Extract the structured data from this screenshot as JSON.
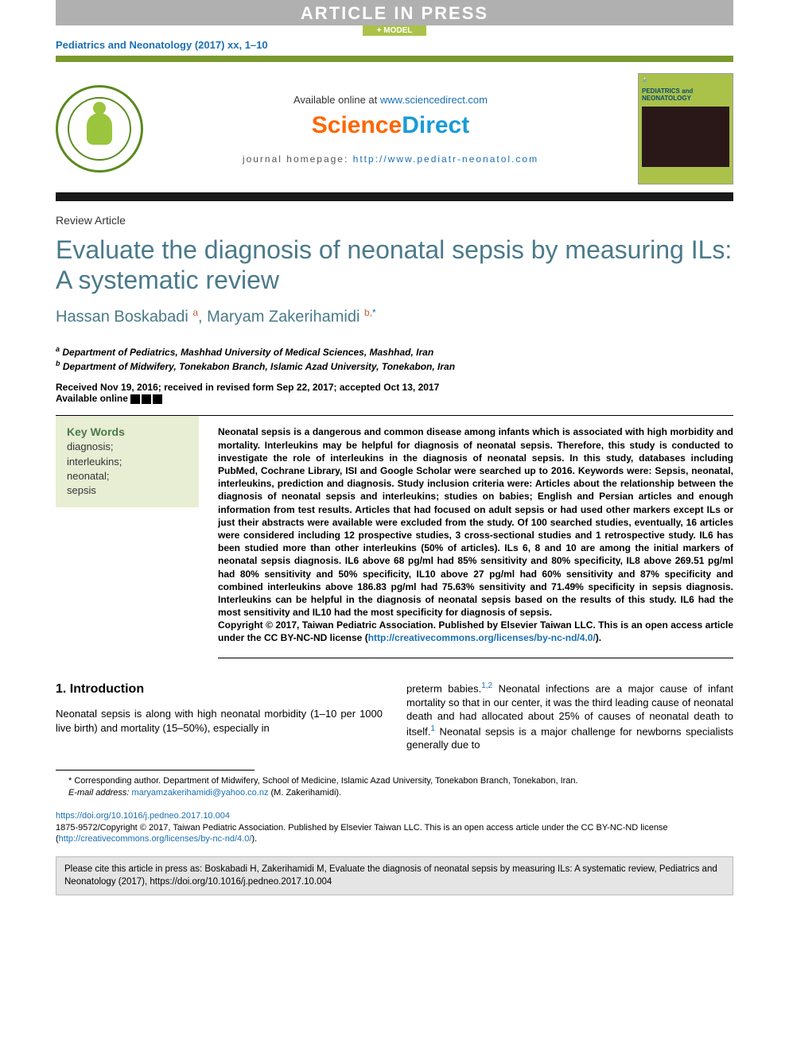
{
  "banner": {
    "article_in_press": "ARTICLE IN PRESS",
    "model": "+ MODEL"
  },
  "citation_top": "Pediatrics and Neonatology (2017) xx, 1–10",
  "header": {
    "available_text": "Available online at ",
    "available_link": "www.sciencedirect.com",
    "sd_part1": "Science",
    "sd_part2": "Direct",
    "homepage_label": "journal homepage: ",
    "homepage_link": "http://www.pediatr-neonatol.com",
    "cover_title": "PEDIATRICS and NEONATOLOGY"
  },
  "article_type": "Review Article",
  "title": "Evaluate the diagnosis of neonatal sepsis by measuring ILs: A systematic review",
  "authors_html": {
    "a1_name": "Hassan Boskabadi ",
    "a1_sup": "a",
    "sep": ", ",
    "a2_name": "Maryam Zakerihamidi ",
    "a2_sup": "b,",
    "corr": "*"
  },
  "affiliations": {
    "a": "Department of Pediatrics, Mashhad University of Medical Sciences, Mashhad, Iran",
    "b": "Department of Midwifery, Tonekabon Branch, Islamic Azad University, Tonekabon, Iran"
  },
  "dates": {
    "received": "Received Nov 19, 2016; received in revised form Sep 22, 2017; accepted Oct 13, 2017",
    "available": "Available online "
  },
  "keywords": {
    "heading": "Key Words",
    "items": [
      "diagnosis;",
      "interleukins;",
      "neonatal;",
      "sepsis"
    ]
  },
  "abstract": {
    "p1": "Neonatal sepsis is a dangerous and common disease among infants which is associated with high morbidity and mortality. Interleukins may be helpful for diagnosis of neonatal sepsis. Therefore, this study is conducted to investigate the role of interleukins in the diagnosis of neonatal sepsis. In this study, databases including PubMed, Cochrane Library, ISI and Google Scholar were searched up to 2016. Keywords were: Sepsis, neonatal, interleukins, prediction and diagnosis. Study inclusion criteria were: Articles about the relationship between the diagnosis of neonatal sepsis and interleukins; studies on babies; English and Persian articles and enough information from test results. Articles that had focused on adult sepsis or had used other markers except ILs or just their abstracts were available were excluded from the study. Of 100 searched studies, eventually, 16 articles were considered including 12 prospective studies, 3 cross-sectional studies and 1 retrospective study. IL6 has been studied more than other interleukins (50% of articles). ILs 6, 8 and 10 are among the initial markers of neonatal sepsis diagnosis. IL6 above 68 pg/ml had 85% sensitivity and 80% specificity, IL8 above 269.51 pg/ml had 80% sensitivity and 50% specificity, IL10 above 27 pg/ml had 60% sensitivity and 87% specificity and combined interleukins above 186.83 pg/ml had 75.63% sensitivity and 71.49% specificity in sepsis diagnosis. Interleukins can be helpful in the diagnosis of neonatal sepsis based on the results of this study. IL6 had the most sensitivity and IL10 had the most specificity for diagnosis of sepsis.",
    "copyright_pre": "Copyright © 2017, Taiwan Pediatric Association. Published by Elsevier Taiwan LLC. This is an open access article under the CC BY-NC-ND license (",
    "cc_link": "http://creativecommons.org/licenses/by-nc-nd/4.0/",
    "copyright_post": ")."
  },
  "intro": {
    "heading": "1. Introduction",
    "col1": "Neonatal sepsis is along with high neonatal morbidity (1–10 per 1000 live birth) and mortality (15–50%), especially in",
    "col2_pre": "preterm babies.",
    "col2_ref1": "1,2",
    "col2_mid": " Neonatal infections are a major cause of infant mortality so that in our center, it was the third leading cause of neonatal death and had allocated about 25% of causes of neonatal death to itself.",
    "col2_ref2": "1",
    "col2_post": " Neonatal sepsis is a major challenge for newborns specialists generally due to"
  },
  "footnote": {
    "corr": "* Corresponding author. Department of Midwifery, School of Medicine, Islamic Azad University, Tonekabon Branch, Tonekabon, Iran.",
    "email_label": "E-mail address: ",
    "email": "maryamzakerihamidi@yahoo.co.nz",
    "email_post": " (M. Zakerihamidi)."
  },
  "doi": {
    "link": "https://doi.org/10.1016/j.pedneo.2017.10.004",
    "line_pre": "1875-9572/Copyright © 2017, Taiwan Pediatric Association. Published by Elsevier Taiwan LLC. This is an open access article under the CC BY-NC-ND license (",
    "cc_link": "http://creativecommons.org/licenses/by-nc-nd/4.0/",
    "line_post": ")."
  },
  "citebox": "Please cite this article in press as: Boskabadi H, Zakerihamidi M, Evaluate the diagnosis of neonatal sepsis by measuring ILs: A systematic review, Pediatrics and Neonatology (2017), https://doi.org/10.1016/j.pedneo.2017.10.004",
  "colors": {
    "green_bar": "#7a9a2e",
    "title_color": "#4a7a8a",
    "link_color": "#1a6fb3",
    "kw_bg": "#e8eed4",
    "sd_orange": "#ff6600",
    "sd_blue": "#1a9bd6"
  }
}
